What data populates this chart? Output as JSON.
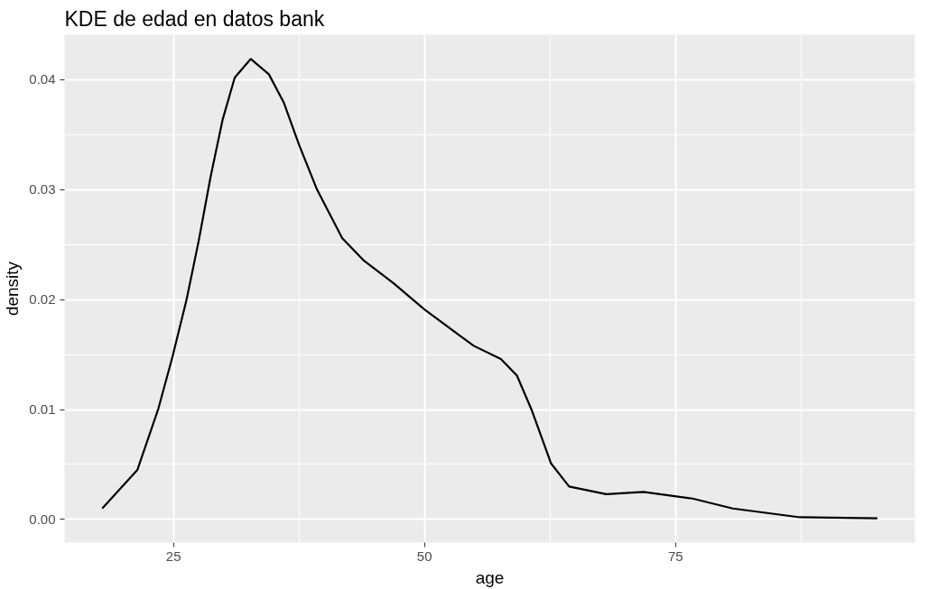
{
  "chart_data": {
    "type": "line",
    "title": "KDE de edad en datos bank",
    "xlabel": "age",
    "ylabel": "density",
    "x": [
      17.9,
      21.4,
      23.5,
      24.9,
      26.3,
      27.5,
      28.7,
      29.9,
      31.1,
      32.7,
      34.5,
      36.0,
      37.5,
      39.3,
      41.8,
      43.9,
      46.9,
      50.0,
      54.9,
      57.6,
      59.2,
      60.7,
      62.6,
      64.4,
      68.1,
      71.8,
      76.7,
      80.7,
      87.4,
      95.1
    ],
    "series": [
      {
        "color": "#000000",
        "values": [
          0.001,
          0.0045,
          0.0101,
          0.0148,
          0.02,
          0.0253,
          0.0312,
          0.0364,
          0.0402,
          0.0419,
          0.0405,
          0.0379,
          0.0341,
          0.03,
          0.0256,
          0.0236,
          0.0215,
          0.0191,
          0.0158,
          0.0146,
          0.0131,
          0.0099,
          0.0051,
          0.003,
          0.0023,
          0.0025,
          0.0019,
          0.001,
          0.0002,
          0.0001
        ]
      }
    ],
    "xlim": [
      14.15,
      98.85
    ],
    "ylim": [
      -0.0021,
      0.0441
    ],
    "xticks": [
      25,
      50,
      75
    ],
    "yticks": [
      {
        "value": 0,
        "label": "0.00"
      },
      {
        "value": 0.01,
        "label": "0.01"
      },
      {
        "value": 0.02,
        "label": "0.02"
      },
      {
        "value": 0.03,
        "label": "0.03"
      },
      {
        "value": 0.04,
        "label": "0.04"
      }
    ],
    "grid": true,
    "marker": "none",
    "line_style": "solid"
  }
}
